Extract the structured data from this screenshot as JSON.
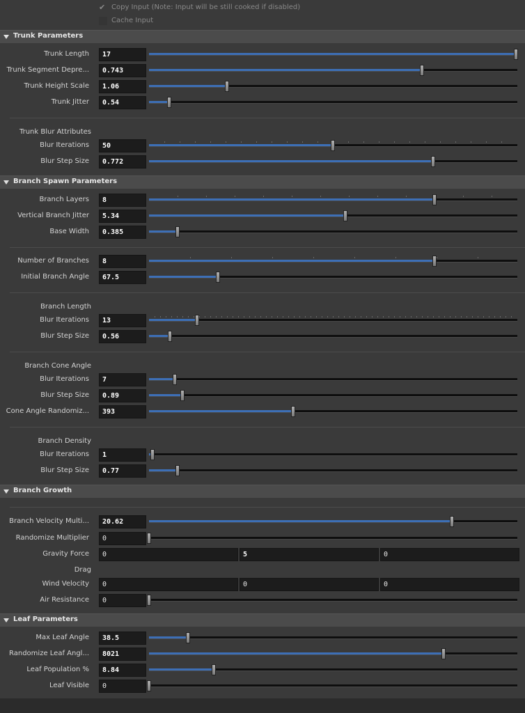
{
  "top": {
    "copy_input": "Copy Input (Note: Input will be still cooked if disabled)",
    "cache_input": "Cache Input"
  },
  "sections": [
    {
      "title": "Trunk Parameters",
      "rows": [
        {
          "label": "Trunk Length",
          "value": "17"
        },
        {
          "label": "Trunk Segment Depre...",
          "value": "0.743"
        },
        {
          "label": "Trunk Height Scale",
          "value": "1.06"
        },
        {
          "label": "Trunk Jitter",
          "value": "0.54"
        },
        {
          "label": "Trunk Blur Attributes"
        },
        {
          "label": "Blur Iterations",
          "value": "50"
        },
        {
          "label": "Blur Step Size",
          "value": "0.772"
        }
      ]
    },
    {
      "title": "Branch Spawn Parameters",
      "rows": [
        {
          "label": "Branch Layers",
          "value": "8"
        },
        {
          "label": "Vertical Branch Jitter",
          "value": "5.34"
        },
        {
          "label": "Base Width",
          "value": "0.385"
        },
        {
          "label": "Number of Branches",
          "value": "8"
        },
        {
          "label": "Initial Branch Angle",
          "value": "67.5"
        },
        {
          "label": "Branch Length"
        },
        {
          "label": "Blur Iterations",
          "value": "13"
        },
        {
          "label": "Blur Step Size",
          "value": "0.56"
        },
        {
          "label": "Branch Cone Angle"
        },
        {
          "label": "Blur Iterations",
          "value": "7"
        },
        {
          "label": "Blur Step Size",
          "value": "0.89"
        },
        {
          "label": "Cone Angle Randomiz...",
          "value": "393"
        },
        {
          "label": "Branch Density"
        },
        {
          "label": "Blur Iterations",
          "value": "1"
        },
        {
          "label": "Blur Step Size",
          "value": "0.77"
        }
      ]
    },
    {
      "title": "Branch Growth",
      "rows": [
        {
          "label": "Branch Velocity Multi...",
          "value": "20.62"
        },
        {
          "label": "Randomize Multiplier",
          "value": "0"
        },
        {
          "label": "Gravity Force",
          "values": [
            "0",
            "5",
            "0"
          ]
        },
        {
          "label": "Drag"
        },
        {
          "label": "Wind Velocity",
          "values": [
            "0",
            "0",
            "0"
          ]
        },
        {
          "label": "Air Resistance",
          "value": "0"
        }
      ]
    },
    {
      "title": "Leaf Parameters",
      "rows": [
        {
          "label": "Max Leaf Angle",
          "value": "38.5"
        },
        {
          "label": "Randomize Leaf Angl...",
          "value": "8021"
        },
        {
          "label": "Leaf Population %",
          "value": "8.84"
        },
        {
          "label": "Leaf Visible",
          "value": "0"
        }
      ]
    }
  ]
}
